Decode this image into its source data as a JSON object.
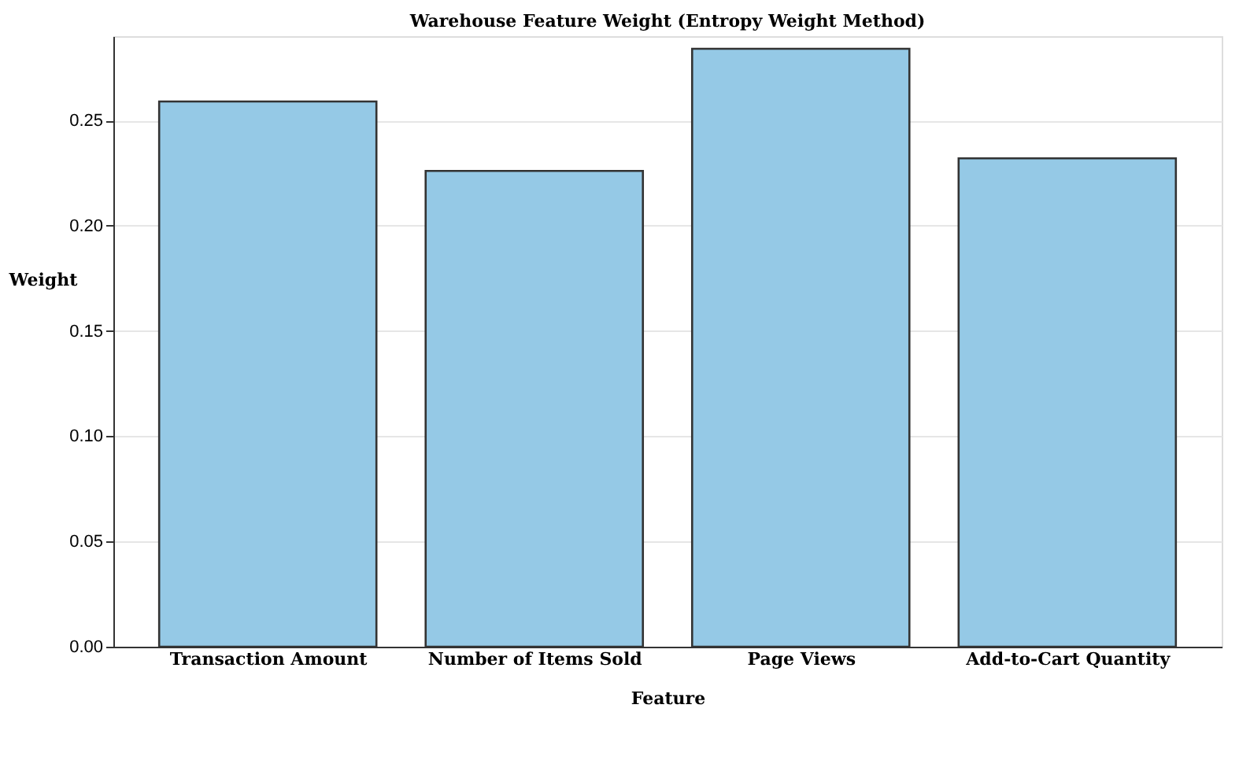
{
  "chart_data": {
    "type": "bar",
    "title": "Warehouse Feature Weight (Entropy Weight Method)",
    "xlabel": "Feature",
    "ylabel": "Weight",
    "categories": [
      "Transaction Amount",
      "Number of Items Sold",
      "Page Views",
      "Add-to-Cart Quantity"
    ],
    "values": [
      0.259,
      0.226,
      0.284,
      0.232
    ],
    "color": "#95c9e6",
    "ylim": [
      0,
      0.29
    ],
    "yticks": [
      {
        "value": 0,
        "label": "0.00"
      },
      {
        "value": 0.05,
        "label": "0.05"
      },
      {
        "value": 0.1,
        "label": "0.10"
      },
      {
        "value": 0.15,
        "label": "0.15"
      },
      {
        "value": 0.2,
        "label": "0.20"
      },
      {
        "value": 0.25,
        "label": "0.25"
      }
    ],
    "grid": "y"
  }
}
